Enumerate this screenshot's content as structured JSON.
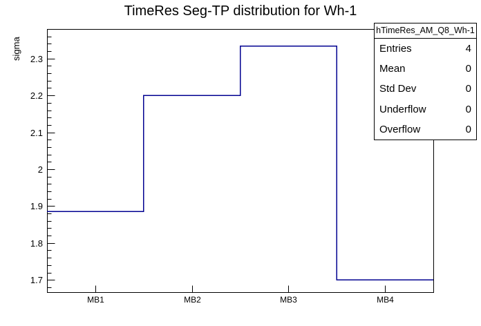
{
  "title": "TimeRes Seg-TP distribution for Wh-1",
  "chart_data": {
    "type": "line",
    "subtype": "step-histogram",
    "title": "TimeRes Seg-TP distribution for Wh-1",
    "xlabel": "",
    "ylabel": "sigma",
    "categories": [
      "MB1",
      "MB2",
      "MB3",
      "MB4"
    ],
    "values": [
      1.885,
      2.2,
      2.3333,
      1.7
    ],
    "ylim": [
      1.6667,
      2.38
    ],
    "yticks": [
      1.7,
      1.8,
      1.9,
      2,
      2.1,
      2.2,
      2.3
    ],
    "ytick_labels": [
      "1.7",
      "1.8",
      "1.9",
      "2",
      "2.1",
      "2.2",
      "2.3"
    ],
    "y_minor_step": 0.02,
    "grid": false,
    "legend_position": "none",
    "line_color": "#000090",
    "frame_color": "#000000",
    "background_color": "#ffffff"
  },
  "stats_box": {
    "header": "hTimeRes_AM_Q8_Wh-1",
    "rows": [
      {
        "label": "Entries",
        "value": "4"
      },
      {
        "label": "Mean",
        "value": "0"
      },
      {
        "label": "Std Dev",
        "value": "0"
      },
      {
        "label": "Underflow",
        "value": "0"
      },
      {
        "label": "Overflow",
        "value": "0"
      }
    ]
  }
}
